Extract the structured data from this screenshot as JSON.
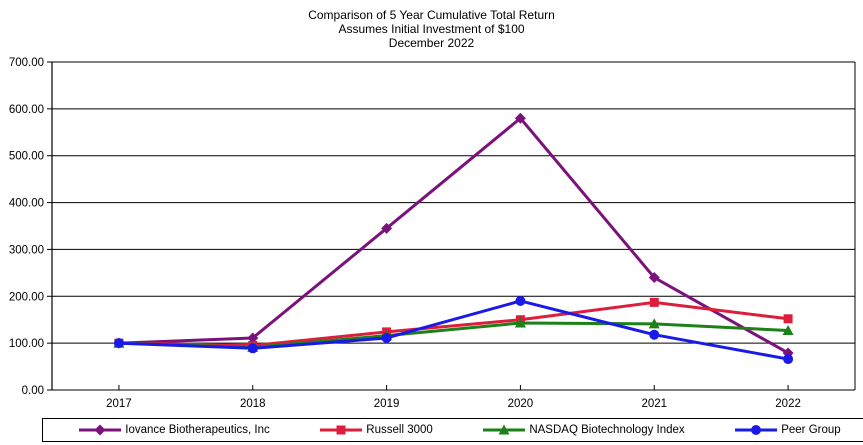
{
  "title": {
    "line1": "Comparison of 5 Year Cumulative Total Return",
    "line2": "Assumes Initial Investment of $100",
    "line3": "December 2022"
  },
  "chart_data": {
    "type": "line",
    "categories": [
      "2017",
      "2018",
      "2019",
      "2020",
      "2021",
      "2022"
    ],
    "series": [
      {
        "name": "Iovance Biotherapeutics, Inc",
        "marker": "diamond",
        "color": "#7B127B",
        "values": [
          100,
          111,
          345,
          580,
          240,
          79
        ]
      },
      {
        "name": "Russell 3000",
        "marker": "square",
        "color": "#DC1E3C",
        "values": [
          100,
          95,
          124,
          150,
          187,
          152
        ]
      },
      {
        "name": "NASDAQ Biotechnology Index",
        "marker": "triangle",
        "color": "#1D8019",
        "values": [
          100,
          91,
          116,
          143,
          141,
          127
        ]
      },
      {
        "name": "Peer Group",
        "marker": "circle",
        "color": "#1A1AE8",
        "values": [
          100,
          89,
          111,
          190,
          118,
          66
        ]
      }
    ],
    "ylim": [
      0,
      700
    ],
    "ytick_step": 100,
    "ytick_labels": [
      "0.00",
      "100.00",
      "200.00",
      "300.00",
      "400.00",
      "500.00",
      "600.00",
      "700.00"
    ],
    "grid": true,
    "legend_position": "bottom",
    "axis_color": "#000000",
    "background": "#FFFFFF"
  }
}
